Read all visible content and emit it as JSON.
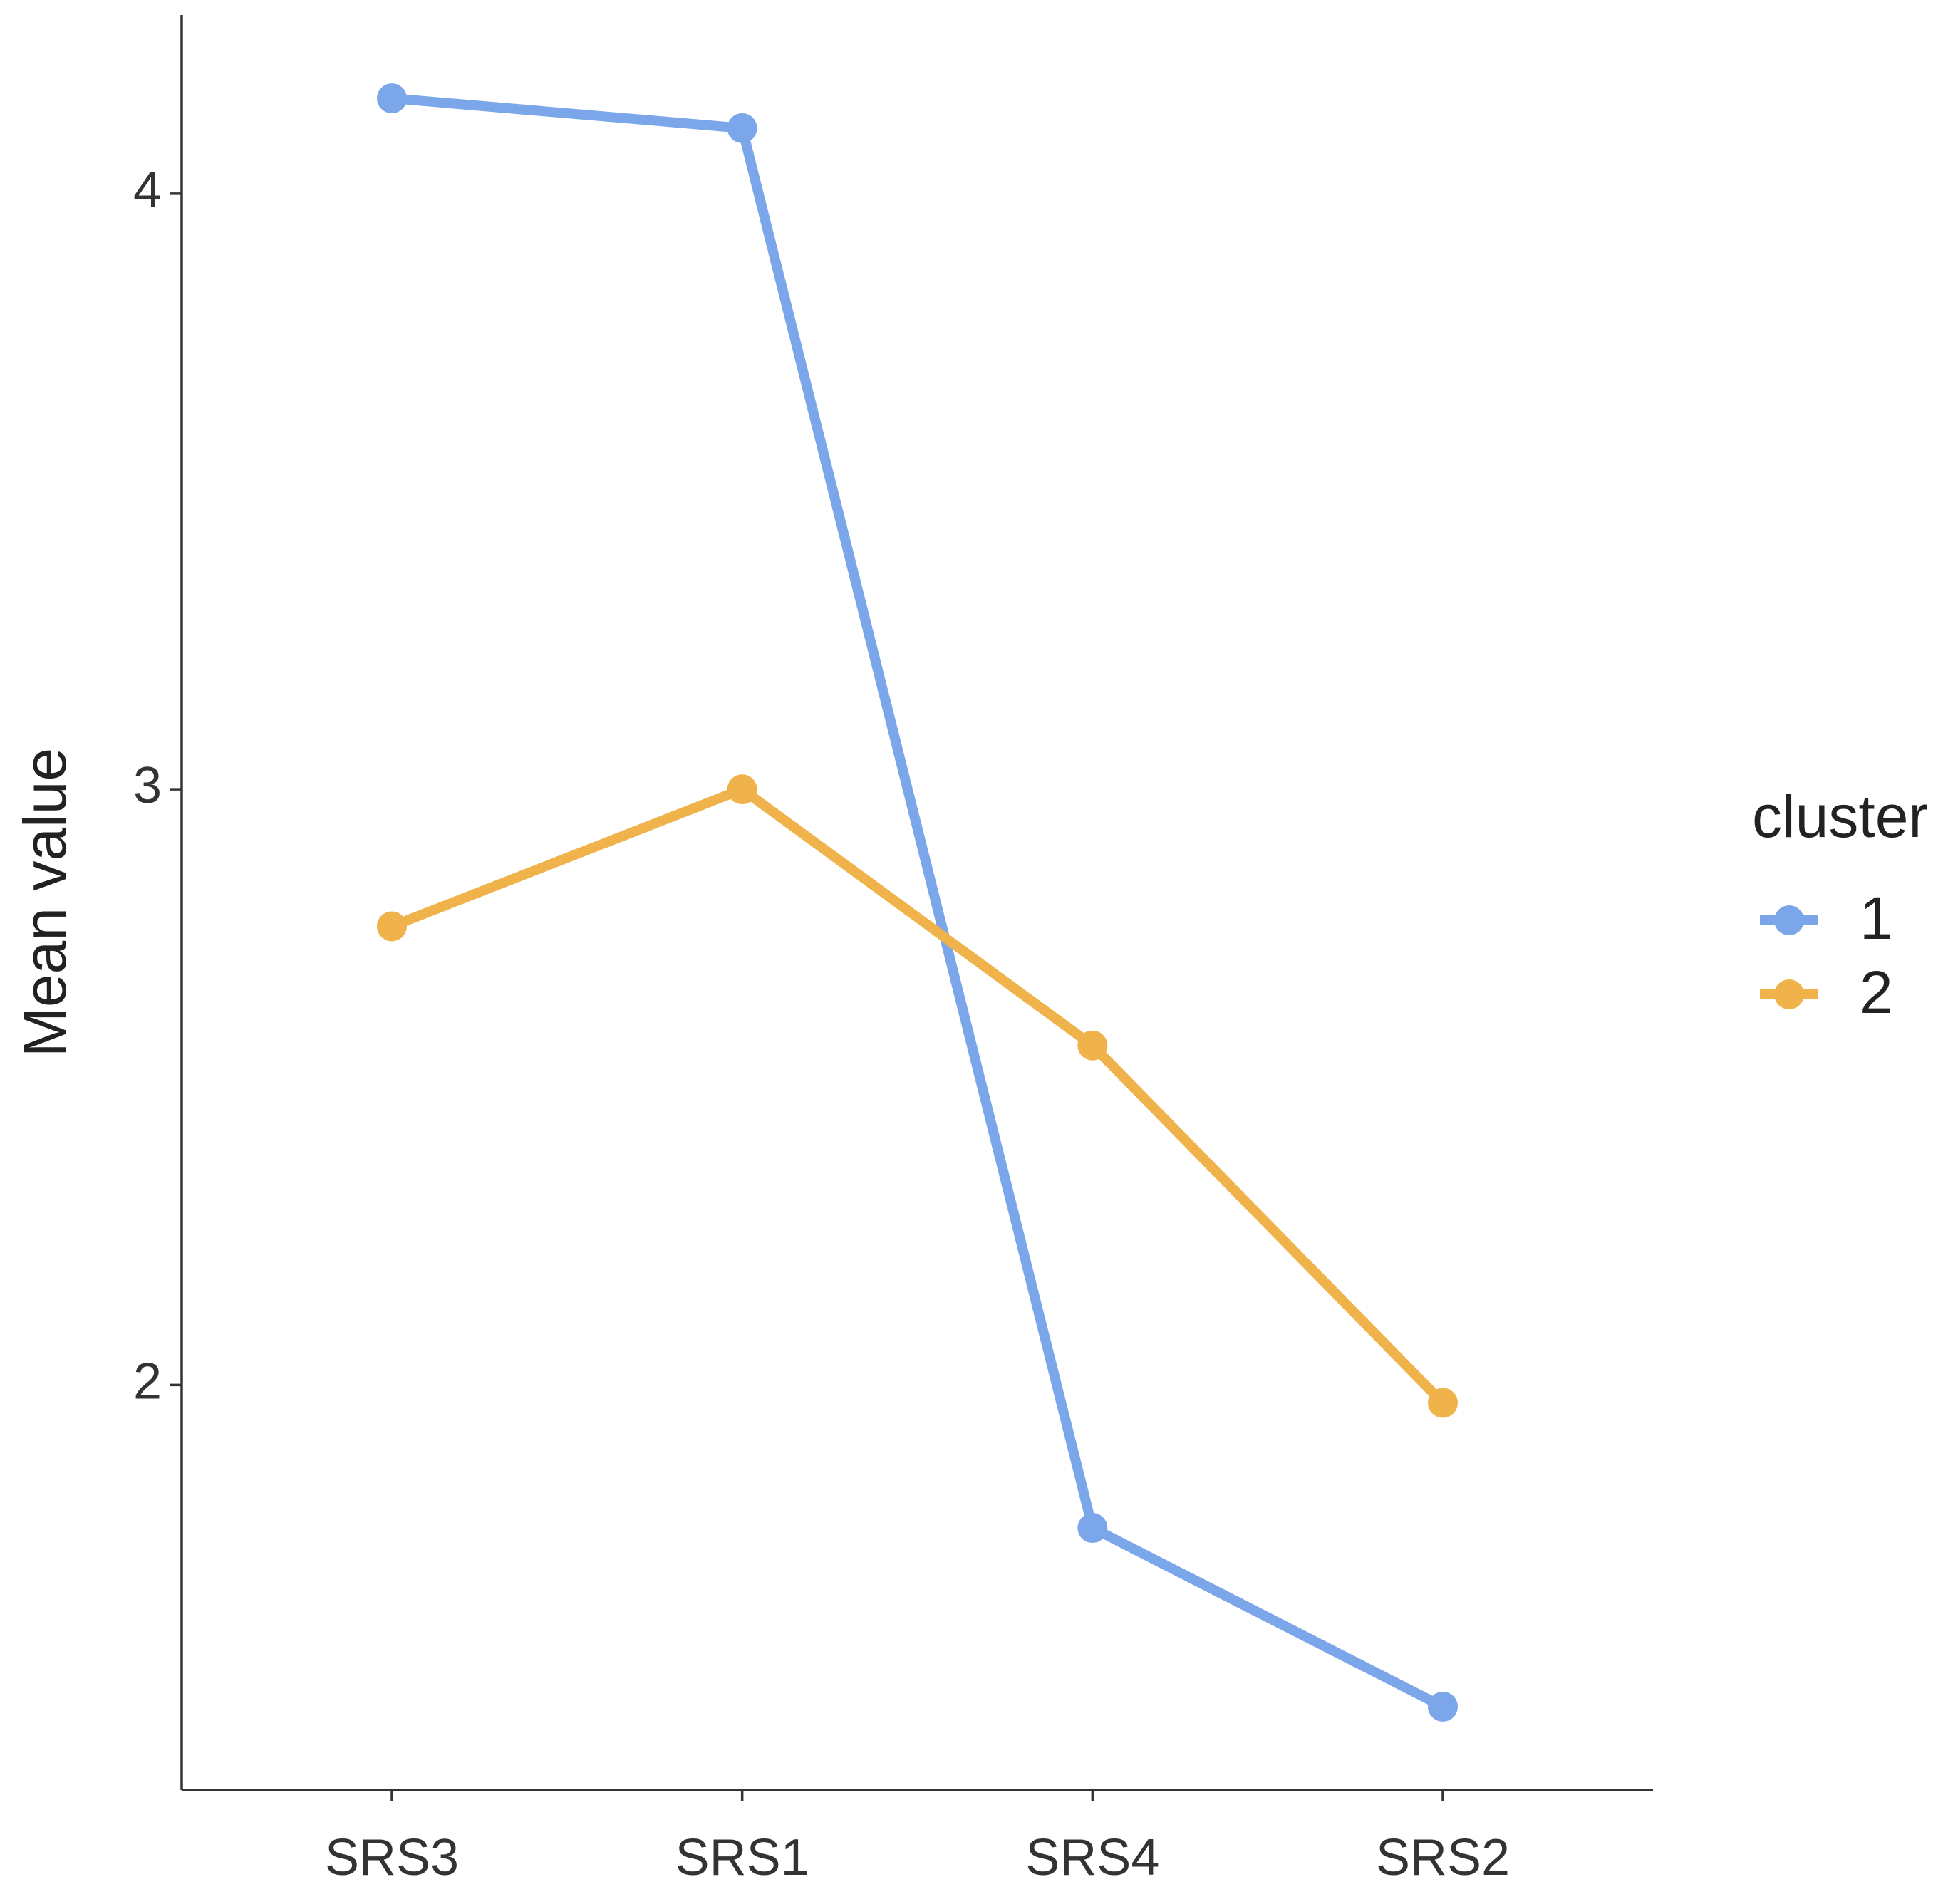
{
  "chart_data": {
    "type": "line",
    "y_label": "Mean value",
    "categories": [
      "SRS3",
      "SRS1",
      "SRS4",
      "SRS2"
    ],
    "series": [
      {
        "name": "1",
        "color": "#7ba7ea",
        "values": [
          4.16,
          4.11,
          1.76,
          1.46
        ]
      },
      {
        "name": "2",
        "color": "#f0b24a",
        "values": [
          2.77,
          3.0,
          2.57,
          1.97
        ]
      }
    ],
    "ylim": [
      1.32,
      4.3
    ],
    "yticks": [
      2,
      3,
      4
    ],
    "legend_title": "cluster",
    "legend_position": "right",
    "grid": false
  }
}
